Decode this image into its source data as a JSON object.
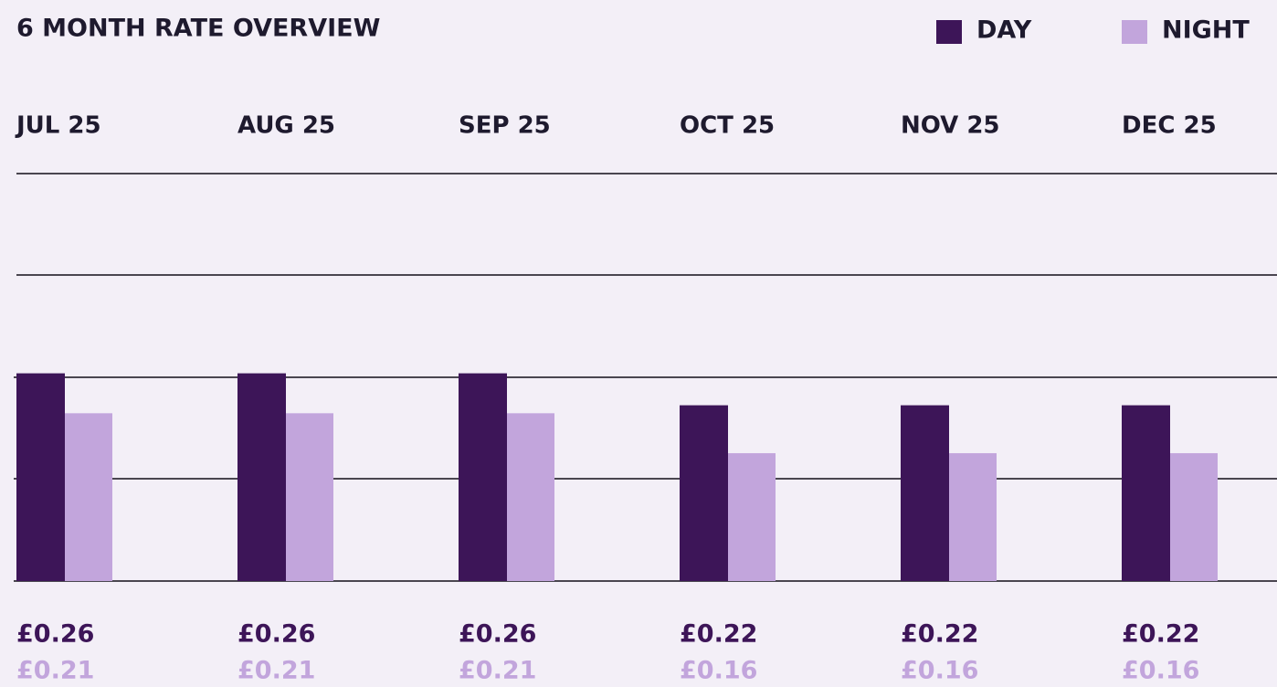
{
  "chart_data": {
    "type": "bar",
    "title": "6 MONTH RATE OVERVIEW",
    "categories": [
      "JUL 25",
      "AUG 25",
      "SEP 25",
      "OCT 25",
      "NOV 25",
      "DEC 25"
    ],
    "series": [
      {
        "name": "DAY",
        "color": "#3d1558",
        "values": [
          0.26,
          0.26,
          0.26,
          0.22,
          0.22,
          0.22
        ],
        "value_labels": [
          "£0.26",
          "£0.26",
          "£0.26",
          "£0.22",
          "£0.22",
          "£0.22"
        ]
      },
      {
        "name": "NIGHT",
        "color": "#c2a5dc",
        "values": [
          0.21,
          0.21,
          0.21,
          0.16,
          0.16,
          0.16
        ],
        "value_labels": [
          "£0.21",
          "£0.21",
          "£0.21",
          "£0.16",
          "£0.16",
          "£0.16"
        ]
      }
    ],
    "ylim": [
      0,
      0.51
    ],
    "legend": "top-right"
  }
}
